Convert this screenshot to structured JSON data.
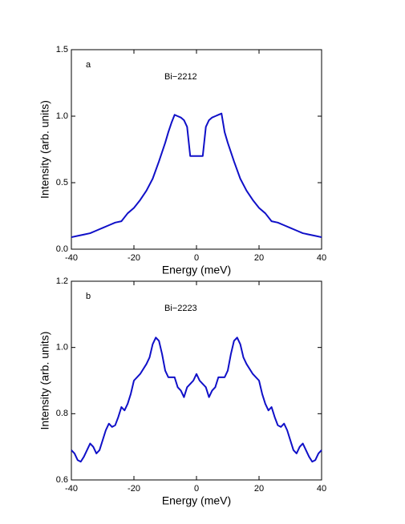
{
  "chart_data": [
    {
      "type": "line",
      "panel_label": "a",
      "annotation": "Bi−2212",
      "x_label": "Energy (meV)",
      "y_label": "Intensity (arb. units)",
      "xlim": [
        -40,
        40
      ],
      "xticks": [
        -40,
        -20,
        0,
        20,
        40
      ],
      "ylim": [
        0,
        1.5
      ],
      "yticks": [
        {
          "value": 0,
          "label": "0.0"
        },
        0.5,
        {
          "value": 1,
          "label": "1.0"
        },
        1.5
      ],
      "x": [
        -40,
        -38,
        -36,
        -34,
        -32,
        -30,
        -28,
        -26,
        -24,
        -22,
        -20,
        -18,
        -16,
        -14,
        -12,
        -10,
        -9,
        -8,
        -7,
        -6,
        -5,
        -4,
        -3,
        -2,
        0,
        2,
        3,
        4,
        5,
        6,
        7,
        8,
        9,
        10,
        12,
        14,
        16,
        18,
        20,
        22,
        24,
        26,
        28,
        30,
        32,
        34,
        36,
        38,
        40
      ],
      "series": [
        {
          "color": "#1010c8",
          "values": [
            0.09,
            0.1,
            0.11,
            0.12,
            0.14,
            0.16,
            0.18,
            0.2,
            0.21,
            0.27,
            0.31,
            0.37,
            0.44,
            0.53,
            0.66,
            0.8,
            0.88,
            0.95,
            1.01,
            1.0,
            0.99,
            0.97,
            0.92,
            0.7,
            0.7,
            0.7,
            0.92,
            0.97,
            0.99,
            1.0,
            1.01,
            1.02,
            0.88,
            0.8,
            0.66,
            0.53,
            0.44,
            0.37,
            0.31,
            0.27,
            0.21,
            0.2,
            0.18,
            0.16,
            0.14,
            0.12,
            0.11,
            0.1,
            0.09
          ]
        }
      ]
    },
    {
      "type": "line",
      "panel_label": "b",
      "annotation": "Bi−2223",
      "x_label": "Energy (meV)",
      "y_label": "Intensity (arb. units)",
      "xlim": [
        -40,
        40
      ],
      "xticks": [
        -40,
        -20,
        0,
        20,
        40
      ],
      "ylim": [
        0.6,
        1.2
      ],
      "yticks": [
        0.6,
        0.8,
        {
          "value": 1,
          "label": "1.0"
        },
        1.2
      ],
      "x": [
        -40,
        -39,
        -38,
        -37,
        -36,
        -34,
        -33,
        -32,
        -31,
        -30,
        -29,
        -28,
        -27,
        -26,
        -25,
        -24,
        -23,
        -22,
        -21,
        -20,
        -18,
        -16,
        -15,
        -14,
        -13,
        -12,
        -11,
        -10,
        -9,
        -8,
        -7,
        -6,
        -5,
        -4,
        -3,
        -2,
        -1,
        0,
        1,
        2,
        3,
        4,
        5,
        6,
        7,
        8,
        9,
        10,
        11,
        12,
        13,
        14,
        15,
        16,
        18,
        20,
        21,
        22,
        23,
        24,
        25,
        26,
        27,
        28,
        29,
        30,
        31,
        32,
        33,
        34,
        36,
        37,
        38,
        39,
        40
      ],
      "series": [
        {
          "color": "#1010c8",
          "values": [
            0.69,
            0.68,
            0.66,
            0.655,
            0.67,
            0.71,
            0.7,
            0.68,
            0.69,
            0.72,
            0.75,
            0.77,
            0.76,
            0.765,
            0.79,
            0.82,
            0.81,
            0.83,
            0.86,
            0.9,
            0.92,
            0.95,
            0.97,
            1.01,
            1.03,
            1.02,
            0.98,
            0.93,
            0.91,
            0.91,
            0.91,
            0.88,
            0.87,
            0.85,
            0.88,
            0.89,
            0.9,
            0.92,
            0.9,
            0.89,
            0.88,
            0.85,
            0.87,
            0.88,
            0.91,
            0.91,
            0.91,
            0.93,
            0.98,
            1.02,
            1.03,
            1.01,
            0.97,
            0.95,
            0.92,
            0.9,
            0.86,
            0.83,
            0.81,
            0.82,
            0.79,
            0.765,
            0.76,
            0.77,
            0.75,
            0.72,
            0.69,
            0.68,
            0.7,
            0.71,
            0.67,
            0.655,
            0.66,
            0.68,
            0.69
          ]
        }
      ]
    }
  ]
}
